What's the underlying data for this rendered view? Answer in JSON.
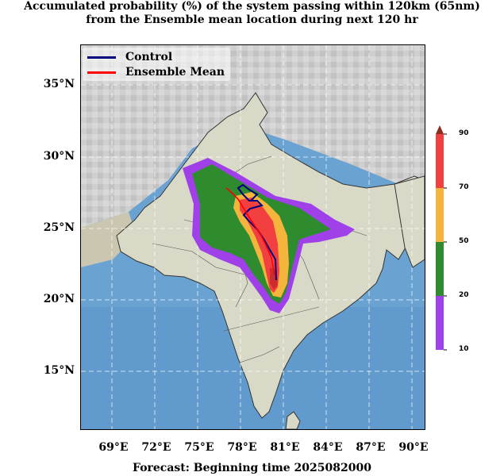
{
  "title_line1": "Accumulated probability (%) of the system passing within 120km (65nm)",
  "title_line2": "from the Ensemble mean location during next 120 hr",
  "footer": "Forecast: Beginning time 2025082000",
  "y_ticks": [
    "35°N",
    "30°N",
    "25°N",
    "20°N",
    "15°N"
  ],
  "x_ticks": [
    "69°E",
    "72°E",
    "75°E",
    "78°E",
    "81°E",
    "84°E",
    "87°E",
    "90°E"
  ],
  "legend": [
    {
      "label": "Control",
      "color": "#00007f"
    },
    {
      "label": "Ensemble Mean",
      "color": "#ff0000"
    }
  ],
  "colorbar": {
    "levels": [
      "90",
      "70",
      "50",
      "20",
      "10"
    ],
    "colors": {
      "10-20": "#a040e8",
      "20-50": "#2e8b2e",
      "50-70": "#f5b53d",
      "70-90": "#f24040"
    }
  },
  "colors": {
    "ocean": "#6aa3d2",
    "land": "#d9d9c8",
    "terrain": "#c9c9c9"
  }
}
